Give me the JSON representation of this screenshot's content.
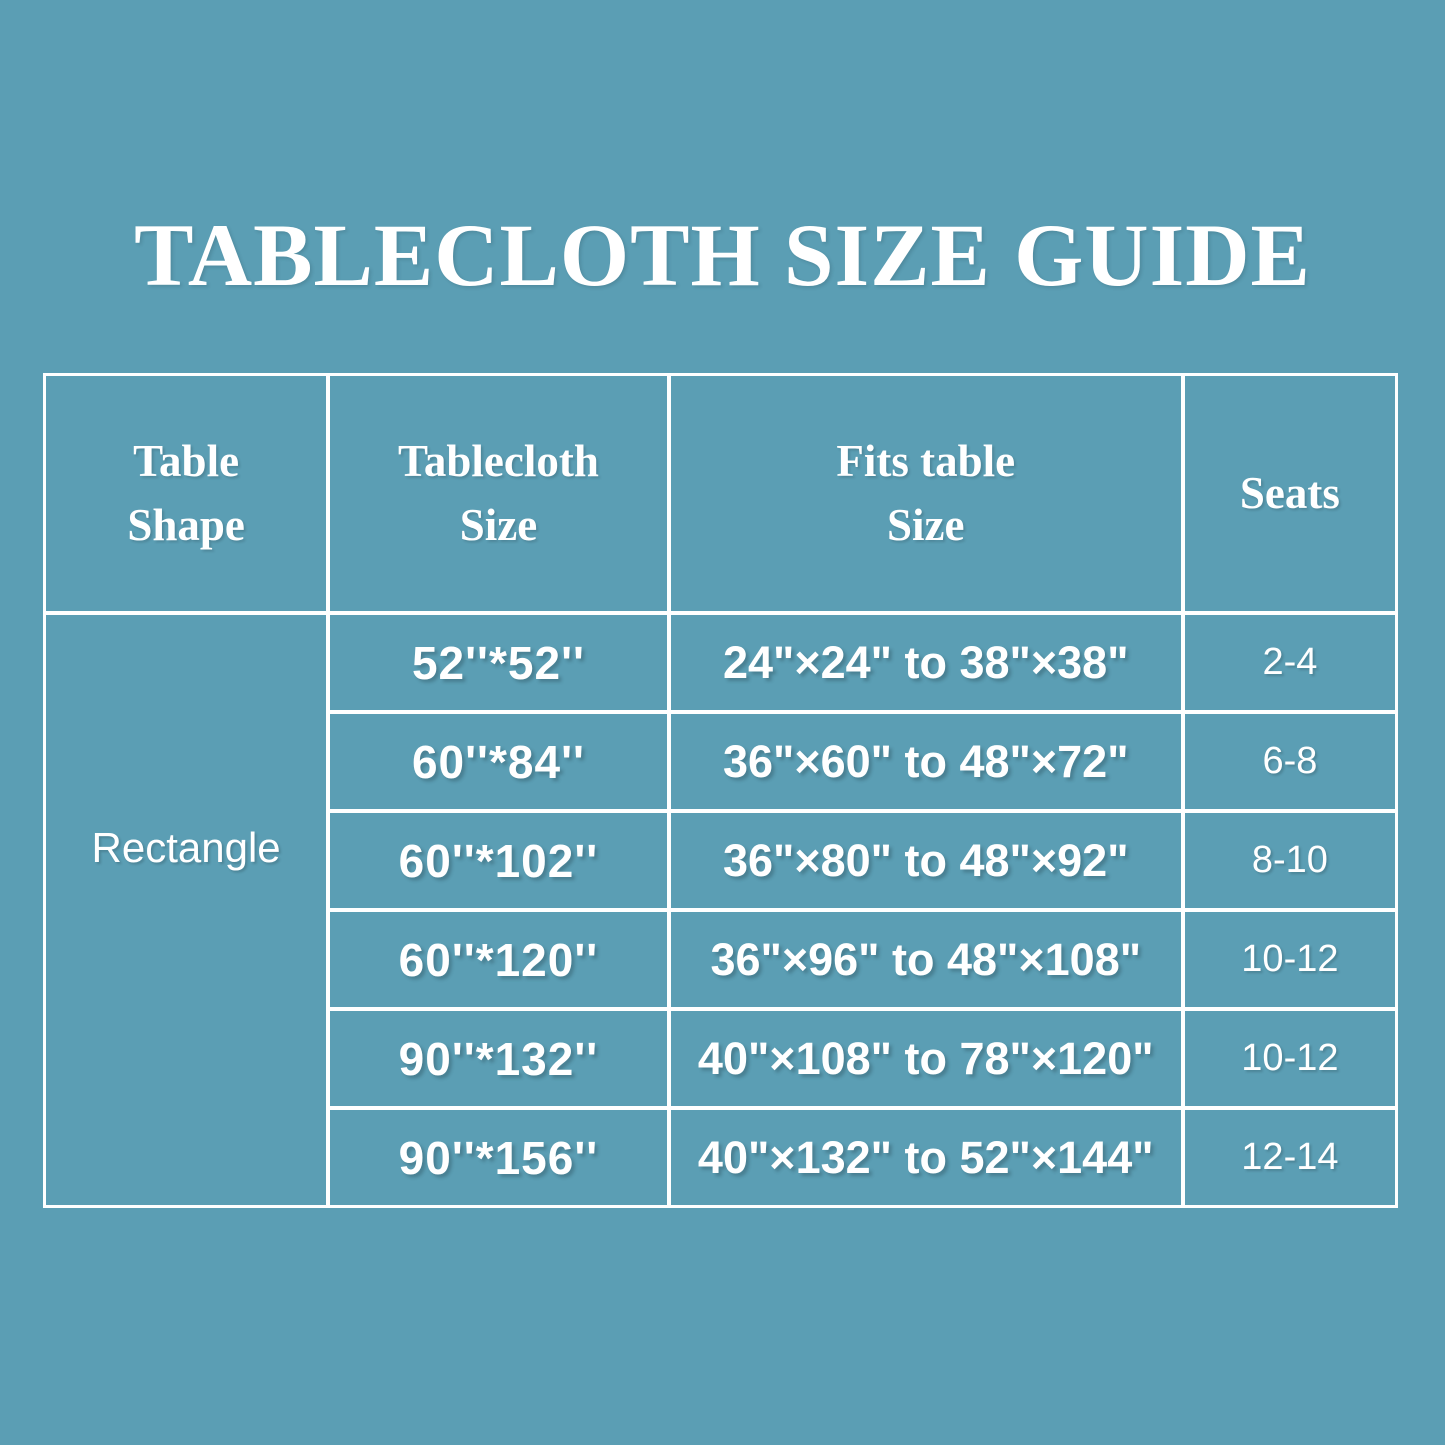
{
  "page": {
    "title": "TABLECLOTH SIZE GUIDE"
  },
  "colors": {
    "background": "#5b9eb4",
    "grid_line": "#ffffff",
    "text": "#ffffff"
  },
  "table": {
    "headers": [
      "Table\nShape",
      "Tablecloth\nSize",
      "Fits table\nSize",
      "Seats"
    ],
    "shape": "Rectangle",
    "rows": [
      {
        "tablecloth_size": "52''*52''",
        "fits_table_size": "24\"×24\" to 38\"×38\"",
        "seats": "2-4"
      },
      {
        "tablecloth_size": "60''*84''",
        "fits_table_size": "36\"×60\" to 48\"×72\"",
        "seats": "6-8"
      },
      {
        "tablecloth_size": "60''*102''",
        "fits_table_size": "36\"×80\" to 48\"×92\"",
        "seats": "8-10"
      },
      {
        "tablecloth_size": "60''*120''",
        "fits_table_size": "36\"×96\" to 48\"×108\"",
        "seats": "10-12"
      },
      {
        "tablecloth_size": "90''*132''",
        "fits_table_size": "40\"×108\" to 78\"×120\"",
        "seats": "10-12"
      },
      {
        "tablecloth_size": "90''*156''",
        "fits_table_size": "40\"×132\" to 52\"×144\"",
        "seats": "12-14"
      }
    ]
  },
  "chart_data": {
    "type": "table",
    "title": "TABLECLOTH SIZE GUIDE",
    "columns": [
      "Table Shape",
      "Tablecloth Size",
      "Fits table Size",
      "Seats"
    ],
    "rows": [
      [
        "Rectangle",
        "52''*52''",
        "24\"×24\" to 38\"×38\"",
        "2-4"
      ],
      [
        "Rectangle",
        "60''*84''",
        "36\"×60\" to 48\"×72\"",
        "6-8"
      ],
      [
        "Rectangle",
        "60''*102''",
        "36\"×80\" to 48\"×92\"",
        "8-10"
      ],
      [
        "Rectangle",
        "60''*120''",
        "36\"×96\" to 48\"×108\"",
        "10-12"
      ],
      [
        "Rectangle",
        "90''*132''",
        "40\"×108\" to 78\"×120\"",
        "10-12"
      ],
      [
        "Rectangle",
        "90''*156''",
        "40\"×132\" to 52\"×144\"",
        "12-14"
      ]
    ],
    "layout": {
      "grid": "on",
      "line_color": "#ffffff",
      "background": "#5b9eb4",
      "shape_column_rowspan": 6
    }
  }
}
